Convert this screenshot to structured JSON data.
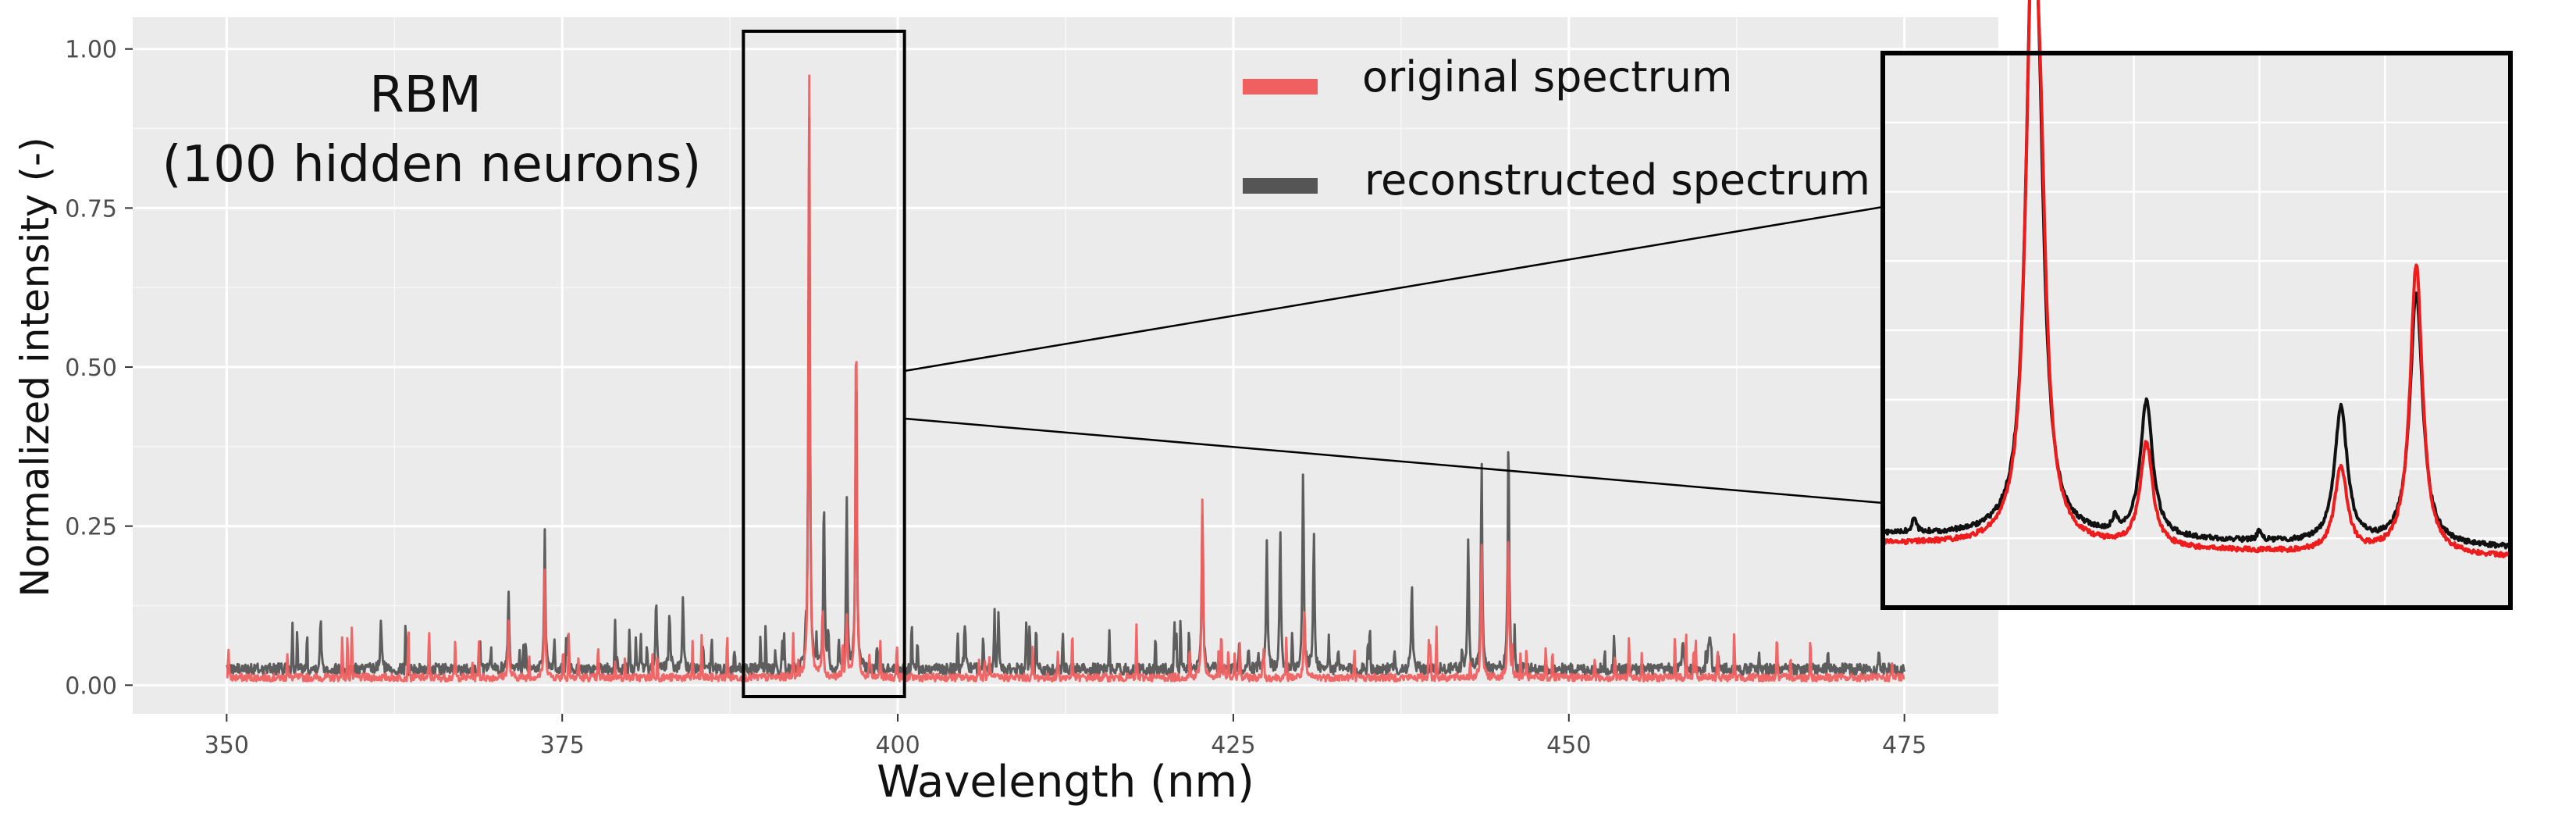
{
  "chart_data": {
    "type": "line",
    "annotation": {
      "line1": "RBM",
      "line2": "(100 hidden neurons)"
    },
    "xlabel": "Wavelength (nm)",
    "ylabel": "Normalized intensity (-)",
    "xlim": [
      343,
      482
    ],
    "ylim": [
      -0.045,
      1.05
    ],
    "x_ticks": [
      350,
      375,
      400,
      425,
      450,
      475
    ],
    "y_ticks": [
      0.0,
      0.25,
      0.5,
      0.75,
      1.0
    ],
    "x_tick_labels": [
      "350",
      "375",
      "400",
      "425",
      "450",
      "475"
    ],
    "y_tick_labels": [
      "0.00",
      "0.25",
      "0.50",
      "0.75",
      "1.00"
    ],
    "grid": true,
    "legend_position": "top",
    "zoom_region_x": [
      388.5,
      400.5
    ],
    "series": [
      {
        "name": "original spectrum",
        "color": "#f06060",
        "baseline": 0.012,
        "peaks": [
          [
            393.4,
            1.0
          ],
          [
            396.9,
            0.58
          ],
          [
            394.4,
            0.12
          ],
          [
            396.2,
            0.11
          ],
          [
            422.7,
            0.3
          ],
          [
            445.5,
            0.25
          ],
          [
            443.5,
            0.22
          ],
          [
            430.3,
            0.12
          ],
          [
            373.7,
            0.18
          ],
          [
            371.0,
            0.1
          ]
        ]
      },
      {
        "name": "reconstructed spectrum",
        "color": "#555555",
        "baseline": 0.025,
        "peaks": [
          [
            393.4,
            0.93
          ],
          [
            396.9,
            0.52
          ],
          [
            394.5,
            0.3
          ],
          [
            396.2,
            0.29
          ],
          [
            373.7,
            0.24
          ],
          [
            371.0,
            0.15
          ],
          [
            382.0,
            0.13
          ],
          [
            383.0,
            0.12
          ],
          [
            384.0,
            0.14
          ],
          [
            422.7,
            0.27
          ],
          [
            427.5,
            0.23
          ],
          [
            428.5,
            0.24
          ],
          [
            430.2,
            0.34
          ],
          [
            431.0,
            0.24
          ],
          [
            438.3,
            0.16
          ],
          [
            443.5,
            0.35
          ],
          [
            445.5,
            0.4
          ],
          [
            442.5,
            0.23
          ],
          [
            405.0,
            0.1
          ],
          [
            407.5,
            0.11
          ],
          [
            357.0,
            0.1
          ],
          [
            361.5,
            0.1
          ],
          [
            458.5,
            0.07
          ],
          [
            460.5,
            0.08
          ]
        ]
      }
    ],
    "inset": {
      "black_label": "reconstructed spectrum",
      "red_label": "original spectrum",
      "black_color": "#111111",
      "red_color": "#ee1c1c",
      "black_peaks": [
        [
          0.237,
          0.96
        ],
        [
          0.248,
          0.6
        ],
        [
          0.42,
          0.29
        ],
        [
          0.73,
          0.29
        ],
        [
          0.85,
          0.54
        ],
        [
          0.37,
          0.03
        ],
        [
          0.6,
          0.02
        ],
        [
          0.05,
          0.03
        ]
      ],
      "red_peaks": [
        [
          0.237,
          1.0
        ],
        [
          0.25,
          0.62
        ],
        [
          0.42,
          0.22
        ],
        [
          0.73,
          0.18
        ],
        [
          0.85,
          0.62
        ]
      ],
      "black_baseline": 0.09,
      "red_baseline": 0.07
    }
  }
}
